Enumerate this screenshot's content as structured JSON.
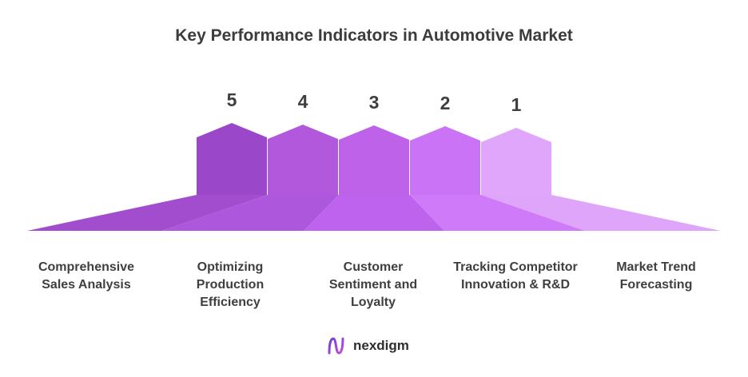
{
  "title": "Key Performance Indicators in Automotive Market",
  "logo": {
    "text": "nexdigm",
    "icon": "nexdigm-logo-icon"
  },
  "items": [
    {
      "rank": "5",
      "label": "Comprehensive Sales Analysis",
      "color": "#9a48c9",
      "base_color": "#a14dce"
    },
    {
      "rank": "4",
      "label": "Optimizing Production Efficiency",
      "color": "#b158dd",
      "base_color": "#ad57dc"
    },
    {
      "rank": "3",
      "label": "Customer Sentiment and Loyalty",
      "color": "#bf62ea",
      "base_color": "#be63ee"
    },
    {
      "rank": "2",
      "label": "Tracking Competitor Innovation & R&D",
      "color": "#cb73f7",
      "base_color": "#cf7af8"
    },
    {
      "rank": "1",
      "label": "Market Trend Forecasting",
      "color": "#e0a6fc",
      "base_color": "#dea5fb"
    }
  ]
}
